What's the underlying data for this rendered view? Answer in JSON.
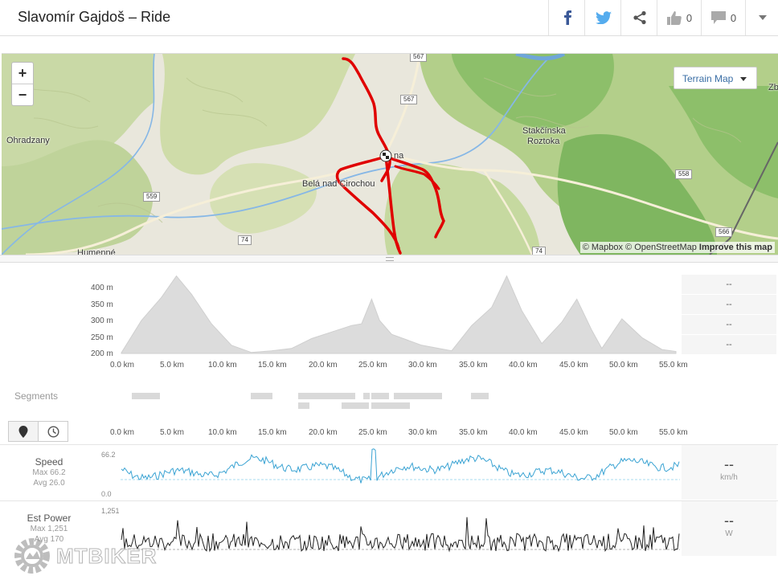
{
  "header": {
    "title": "Slavomír Gajdoš – Ride",
    "kudos_count": "0",
    "comments_count": "0"
  },
  "map": {
    "terrain_button": "Terrain Map",
    "zoom_in": "+",
    "zoom_out": "−",
    "attribution_1": "© Mapbox © OpenStreetMap",
    "attribution_link": "Improve this map",
    "labels": [
      "Ohradzany",
      "Belá nad Cirochou",
      "Stakčínska",
      "Roztoka",
      "Humenné",
      "Zb",
      "na"
    ],
    "road_signs": [
      "567",
      "567",
      "559",
      "74",
      "74",
      "558",
      "566"
    ]
  },
  "elevation": {
    "y_ticks": [
      "400 m",
      "350 m",
      "300 m",
      "250 m",
      "200 m"
    ],
    "x_ticks": [
      "0.0 km",
      "5.0 km",
      "10.0 km",
      "15.0 km",
      "20.0 km",
      "25.0 km",
      "30.0 km",
      "35.0 km",
      "40.0 km",
      "45.0 km",
      "50.0 km",
      "55.0 km"
    ],
    "stats": [
      "--",
      "--",
      "--",
      "--"
    ],
    "profile": {
      "km": [
        0,
        2,
        4,
        5.5,
        7,
        9,
        11,
        13,
        15,
        17,
        19,
        21,
        23,
        24,
        25,
        25.8,
        27,
        30,
        33,
        35,
        37,
        38.5,
        40,
        42,
        44,
        45.5,
        47,
        48,
        50,
        52,
        54,
        55.4
      ],
      "elev_m": [
        202,
        300,
        370,
        435,
        380,
        290,
        225,
        203,
        208,
        215,
        245,
        265,
        285,
        290,
        365,
        300,
        258,
        225,
        208,
        285,
        340,
        435,
        330,
        230,
        295,
        365,
        270,
        215,
        305,
        248,
        212,
        206
      ]
    }
  },
  "segments": {
    "label": "Segments"
  },
  "toolbar": {
    "map_pin": "map-pin",
    "clock": "clock"
  },
  "streams": {
    "x_ticks": [
      "0.0 km",
      "5.0 km",
      "10.0 km",
      "15.0 km",
      "20.0 km",
      "25.0 km",
      "30.0 km",
      "35.0 km",
      "40.0 km",
      "45.0 km",
      "50.0 km",
      "55.0 km"
    ],
    "speed": {
      "name": "Speed",
      "max": "Max 66.2",
      "avg": "Avg 26.0",
      "top": "66.2",
      "bottom": "0.0",
      "value": "--",
      "unit": "km/h",
      "color": "#3aa3d3"
    },
    "power": {
      "name": "Est Power",
      "max": "Max 1,251",
      "avg": "Avg 170",
      "top": "1,251",
      "value": "--",
      "unit": "W",
      "color": "#222222"
    }
  },
  "watermark": {
    "text": "MTBIKER"
  }
}
